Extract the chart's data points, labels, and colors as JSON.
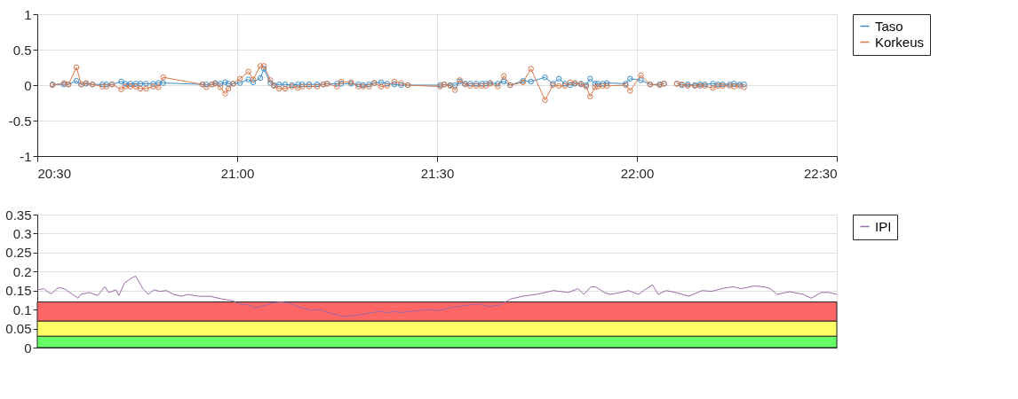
{
  "chart_data": [
    {
      "type": "line",
      "marker": "circle",
      "grid": true,
      "legend": "right",
      "xlim": [
        20.5,
        22.5
      ],
      "xticks": [
        {
          "value": 20.5,
          "label": "20:30"
        },
        {
          "value": 21,
          "label": "21:00"
        },
        {
          "value": 21.5,
          "label": "21:30"
        },
        {
          "value": 22,
          "label": "22:00"
        },
        {
          "value": 22.5,
          "label": "22:30"
        }
      ],
      "ylim": [
        -1,
        1
      ],
      "yticks": [
        -1,
        -0.5,
        0,
        0.5,
        1
      ],
      "x": [
        20.538,
        20.567,
        20.578,
        20.598,
        20.61,
        20.622,
        20.638,
        20.663,
        20.673,
        20.687,
        20.71,
        20.72,
        20.733,
        20.747,
        20.758,
        20.772,
        20.79,
        20.803,
        20.815,
        20.913,
        20.923,
        20.937,
        20.945,
        20.958,
        20.97,
        20.978,
        20.99,
        21.007,
        21.028,
        21.04,
        21.058,
        21.067,
        21.083,
        21.092,
        21.105,
        21.12,
        21.137,
        21.152,
        21.163,
        21.18,
        21.2,
        21.215,
        21.225,
        21.25,
        21.26,
        21.285,
        21.303,
        21.315,
        21.33,
        21.343,
        21.36,
        21.375,
        21.393,
        21.41,
        21.427,
        21.508,
        21.518,
        21.533,
        21.545,
        21.557,
        21.57,
        21.583,
        21.598,
        21.612,
        21.622,
        21.633,
        21.652,
        21.667,
        21.683,
        21.715,
        21.735,
        21.77,
        21.79,
        21.805,
        21.82,
        21.833,
        21.845,
        21.86,
        21.873,
        21.883,
        21.895,
        21.902,
        21.915,
        21.925,
        21.972,
        21.983,
        22.01,
        22.033,
        22.057,
        22.068,
        22.085,
        22.1,
        22.112,
        22.127,
        22.145,
        22.158,
        22.17,
        22.19,
        22.203,
        22.215,
        22.232,
        22.243,
        22.257,
        22.268
      ],
      "series": [
        {
          "name": "Taso",
          "color": "#3a8dc9",
          "values": [
            0.01,
            0.01,
            0.01,
            0.06,
            0.01,
            0.02,
            0.01,
            0.01,
            0.01,
            0.01,
            0.05,
            0.02,
            0.02,
            0.02,
            0.02,
            0.02,
            0.02,
            0.03,
            0.03,
            0.01,
            0.01,
            0.01,
            0.03,
            0.02,
            0.04,
            0.02,
            0.02,
            0.03,
            0.08,
            0.04,
            0.1,
            0.23,
            0.03,
            0,
            0.01,
            0.01,
            0,
            0.01,
            0.01,
            0.01,
            0.01,
            0.01,
            0.02,
            0.02,
            0.02,
            0.02,
            0.01,
            0,
            0.01,
            0.03,
            0.04,
            0.02,
            0.01,
            0,
            0,
            0,
            0.01,
            0,
            0,
            0.05,
            0.02,
            0.02,
            0.02,
            0.02,
            0.02,
            0.03,
            0.02,
            0.05,
            0,
            0.06,
            0.05,
            0.11,
            0.02,
            0.09,
            0.02,
            0,
            0.02,
            0.02,
            0,
            0.09,
            0.02,
            0.02,
            0.02,
            0.03,
            0.02,
            0.09,
            0.07,
            0.01,
            0.01,
            0.02,
            null,
            0.02,
            0,
            0.01,
            0,
            0.01,
            0.01,
            0.02,
            0.01,
            0.01,
            0.01,
            0.02,
            0.01,
            0.01
          ]
        },
        {
          "name": "Korkeus",
          "color": "#d8764a",
          "values": [
            0,
            0.03,
            0.01,
            0.25,
            0.01,
            0.03,
            0.01,
            -0.02,
            -0.02,
            0.01,
            -0.06,
            -0.02,
            -0.02,
            -0.02,
            -0.05,
            -0.05,
            -0.02,
            -0.03,
            0.11,
            0.01,
            -0.03,
            0.01,
            0.02,
            -0.03,
            -0.12,
            -0.05,
            0.02,
            0.09,
            0.19,
            0.08,
            0.27,
            0.27,
            0.07,
            -0.01,
            -0.05,
            -0.05,
            -0.02,
            -0.04,
            -0.02,
            -0.02,
            -0.02,
            0.01,
            0.02,
            -0.02,
            0.05,
            0.04,
            -0.02,
            -0.02,
            -0.02,
            0.03,
            -0.02,
            -0.01,
            0.05,
            0.03,
            0,
            -0.02,
            0.01,
            -0.01,
            -0.07,
            0.07,
            0.01,
            -0.01,
            -0.01,
            -0.01,
            -0.01,
            0.02,
            -0.02,
            0.13,
            0,
            0.04,
            0.23,
            -0.21,
            0,
            -0.01,
            -0.01,
            0.04,
            0.03,
            0.01,
            -0.02,
            -0.16,
            -0.03,
            -0.02,
            -0.01,
            -0.01,
            0,
            -0.08,
            0.14,
            0.01,
            0,
            0.02,
            null,
            0.02,
            0.01,
            -0.01,
            -0.01,
            -0.01,
            -0.01,
            -0.04,
            -0.01,
            -0.01,
            -0.01,
            -0.02,
            -0.01,
            -0.03
          ]
        }
      ]
    },
    {
      "type": "line",
      "grid": "y",
      "legend": "right",
      "tick_labels": "y",
      "xlim": [
        20.5,
        22.5
      ],
      "ylim": [
        0,
        0.35
      ],
      "yticks": [
        0,
        0.05,
        0.1,
        0.15,
        0.2,
        0.25,
        0.3,
        0.35
      ],
      "bands": [
        {
          "axis": "y",
          "from": 0,
          "to": 0.03,
          "color": "#66ff66"
        },
        {
          "axis": "y",
          "from": 0.03,
          "to": 0.07,
          "color": "#ffff66"
        },
        {
          "axis": "y",
          "from": 0.07,
          "to": 0.12,
          "color": "#ff6666"
        }
      ],
      "x": [
        20.5,
        20.517,
        20.528,
        20.535,
        20.553,
        20.567,
        20.588,
        20.602,
        20.609,
        20.63,
        20.651,
        20.669,
        20.679,
        20.697,
        20.704,
        20.718,
        20.739,
        20.746,
        20.753,
        20.764,
        20.778,
        20.792,
        20.806,
        20.823,
        20.841,
        20.862,
        20.876,
        20.904,
        20.933,
        20.961,
        20.989,
        21.003,
        21.024,
        21.045,
        21.066,
        21.087,
        21.108,
        21.129,
        21.158,
        21.186,
        21.207,
        21.228,
        21.263,
        21.298,
        21.326,
        21.355,
        21.376,
        21.397,
        21.411,
        21.432,
        21.446,
        21.477,
        21.502,
        21.534,
        21.567,
        21.6,
        21.632,
        21.657,
        21.685,
        21.714,
        21.747,
        21.771,
        21.791,
        21.828,
        21.853,
        21.867,
        21.885,
        21.897,
        21.918,
        21.934,
        21.959,
        21.979,
        22.004,
        22.024,
        22.039,
        22.053,
        22.073,
        22.097,
        22.13,
        22.163,
        22.187,
        22.212,
        22.24,
        22.261,
        22.293,
        22.318,
        22.334,
        22.35,
        22.383,
        22.416,
        22.436,
        22.461,
        22.481,
        22.5
      ],
      "series": [
        {
          "name": "IPI",
          "color": "#9b6aa8",
          "values": [
            0.152,
            0.155,
            0.145,
            0.142,
            0.158,
            0.155,
            0.14,
            0.13,
            0.14,
            0.145,
            0.137,
            0.16,
            0.145,
            0.152,
            0.137,
            0.17,
            0.185,
            0.188,
            0.175,
            0.155,
            0.14,
            0.152,
            0.148,
            0.15,
            0.14,
            0.135,
            0.14,
            0.135,
            0.135,
            0.128,
            0.123,
            0.115,
            0.113,
            0.105,
            0.11,
            0.117,
            0.12,
            0.117,
            0.105,
            0.098,
            0.1,
            0.092,
            0.082,
            0.085,
            0.09,
            0.095,
            0.092,
            0.095,
            0.092,
            0.095,
            0.097,
            0.1,
            0.097,
            0.105,
            0.11,
            0.115,
            0.108,
            0.112,
            0.128,
            0.135,
            0.14,
            0.145,
            0.15,
            0.145,
            0.155,
            0.14,
            0.16,
            0.16,
            0.145,
            0.14,
            0.145,
            0.15,
            0.14,
            0.155,
            0.165,
            0.14,
            0.15,
            0.145,
            0.135,
            0.15,
            0.148,
            0.155,
            0.16,
            0.155,
            0.162,
            0.16,
            0.155,
            0.14,
            0.147,
            0.14,
            0.13,
            0.145,
            0.145,
            0.14
          ]
        }
      ]
    }
  ]
}
